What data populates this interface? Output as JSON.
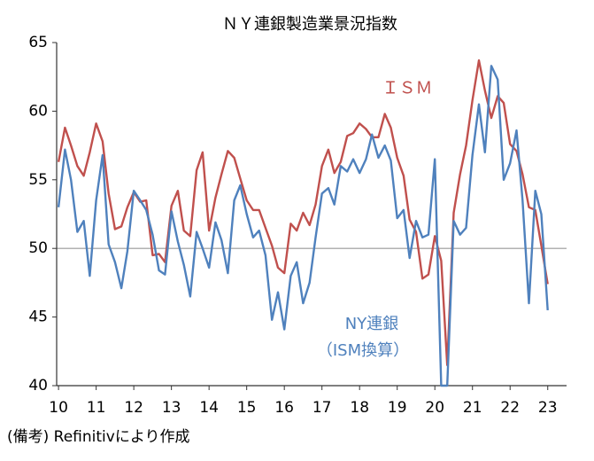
{
  "chart_data": {
    "type": "line",
    "title": "ＮＹ連銀製造業景況指数",
    "x": [
      10,
      10.17,
      10.33,
      10.5,
      10.67,
      10.83,
      11,
      11.17,
      11.33,
      11.5,
      11.67,
      11.83,
      12,
      12.17,
      12.33,
      12.5,
      12.67,
      12.83,
      13,
      13.17,
      13.33,
      13.5,
      13.67,
      13.83,
      14,
      14.17,
      14.33,
      14.5,
      14.67,
      14.83,
      15,
      15.17,
      15.33,
      15.5,
      15.67,
      15.83,
      16,
      16.17,
      16.33,
      16.5,
      16.67,
      16.83,
      17,
      17.17,
      17.33,
      17.5,
      17.67,
      17.83,
      18,
      18.17,
      18.33,
      18.5,
      18.67,
      18.83,
      19,
      19.17,
      19.33,
      19.5,
      19.67,
      19.83,
      20,
      20.17,
      20.33,
      20.5,
      20.67,
      20.83,
      21,
      21.17,
      21.33,
      21.5,
      21.67,
      21.83,
      22,
      22.17,
      22.33,
      22.5,
      22.67,
      22.83,
      23
    ],
    "series": [
      {
        "name": "ＩＳＭ",
        "color": "#c0504d",
        "values": [
          56.3,
          58.8,
          57.5,
          56.0,
          55.3,
          57.0,
          59.1,
          57.8,
          54.0,
          51.4,
          51.6,
          53.0,
          54.1,
          53.4,
          53.5,
          49.5,
          49.6,
          49.0,
          53.1,
          54.2,
          51.3,
          50.9,
          55.7,
          57.0,
          51.3,
          53.7,
          55.4,
          57.1,
          56.6,
          55.1,
          53.5,
          52.8,
          52.8,
          51.5,
          50.2,
          48.6,
          48.2,
          51.8,
          51.3,
          52.6,
          51.7,
          53.2,
          56.0,
          57.2,
          55.5,
          56.3,
          58.2,
          58.4,
          59.1,
          58.7,
          58.1,
          58.1,
          59.8,
          58.8,
          56.6,
          55.3,
          52.1,
          51.2,
          47.8,
          48.1,
          50.9,
          49.1,
          41.5,
          52.6,
          55.4,
          57.5,
          60.8,
          63.7,
          61.5,
          59.5,
          61.1,
          60.6,
          57.6,
          57.1,
          55.4,
          53.0,
          52.8,
          50.2,
          47.4
        ]
      },
      {
        "name": "NY連銀",
        "color": "#4f81bd",
        "values": [
          53.0,
          57.2,
          55.0,
          51.2,
          52.0,
          48.0,
          53.5,
          56.8,
          50.3,
          49.0,
          47.1,
          49.8,
          54.2,
          53.5,
          52.8,
          51.0,
          48.4,
          48.1,
          52.7,
          50.5,
          48.8,
          46.5,
          51.2,
          50.0,
          48.6,
          51.9,
          50.6,
          48.2,
          53.5,
          54.6,
          52.5,
          50.8,
          51.3,
          49.5,
          44.8,
          46.8,
          44.1,
          48.0,
          49.0,
          46.0,
          47.5,
          50.8,
          54.0,
          54.4,
          53.2,
          56.0,
          55.6,
          56.5,
          55.5,
          56.5,
          58.3,
          56.6,
          57.5,
          56.4,
          52.2,
          52.8,
          49.3,
          52.0,
          50.8,
          51.0,
          56.5,
          40.0,
          40.0,
          52.0,
          51.0,
          51.5,
          56.8,
          60.5,
          57.0,
          63.3,
          62.3,
          55.0,
          56.2,
          58.6,
          53.5,
          46.0,
          54.2,
          52.5,
          45.5
        ]
      }
    ],
    "annotations": [
      "ＩＳＭ",
      "NY連銀",
      "（ISM換算）"
    ],
    "source": "(備考) Refinitivにより作成",
    "xlim": [
      9.95,
      23.5
    ],
    "xticks": [
      10,
      11,
      12,
      13,
      14,
      15,
      16,
      17,
      18,
      19,
      20,
      21,
      22,
      23
    ],
    "ylim": [
      40,
      65
    ],
    "yticks": [
      40,
      45,
      50,
      55,
      60,
      65
    ],
    "reference_line": 50,
    "grid": false
  }
}
